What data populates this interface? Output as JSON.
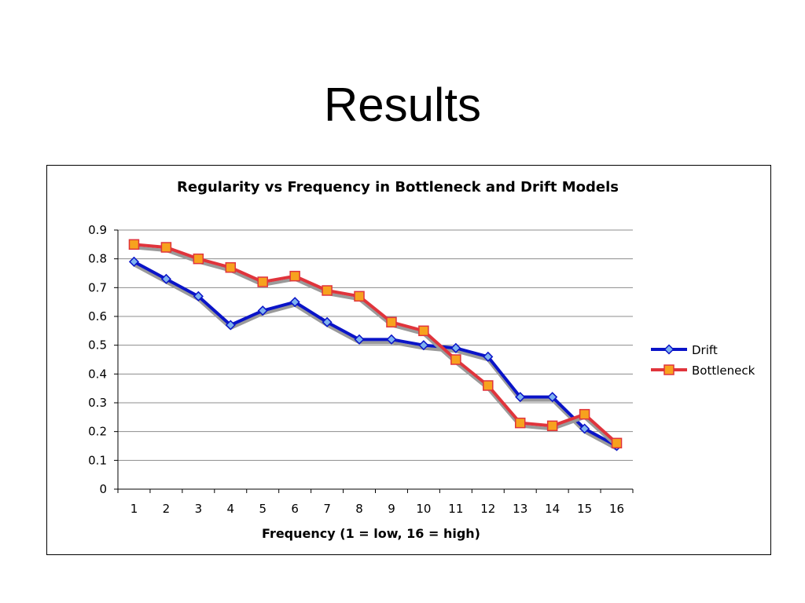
{
  "slide": {
    "title": "Results"
  },
  "chart_data": {
    "type": "line",
    "title": "Regularity vs Frequency in Bottleneck and Drift Models",
    "xlabel": "Frequency (1 = low, 16 = high)",
    "ylabel": "",
    "categories": [
      "1",
      "2",
      "3",
      "4",
      "5",
      "6",
      "7",
      "8",
      "9",
      "10",
      "11",
      "12",
      "13",
      "14",
      "15",
      "16"
    ],
    "yticks": [
      "0",
      "0.1",
      "0.2",
      "0.3",
      "0.4",
      "0.5",
      "0.6",
      "0.7",
      "0.8",
      "0.9"
    ],
    "ylim": [
      0,
      0.9
    ],
    "grid": true,
    "legend_position": "right",
    "series": [
      {
        "name": "Drift",
        "color": "#0a14c8",
        "marker": "diamond",
        "values": [
          0.79,
          0.73,
          0.67,
          0.57,
          0.62,
          0.65,
          0.58,
          0.52,
          0.52,
          0.5,
          0.49,
          0.46,
          0.32,
          0.32,
          0.21,
          0.15
        ]
      },
      {
        "name": "Bottleneck",
        "color": "#e0343c",
        "marker": "square",
        "values": [
          0.85,
          0.84,
          0.8,
          0.77,
          0.72,
          0.74,
          0.69,
          0.67,
          0.58,
          0.55,
          0.45,
          0.36,
          0.23,
          0.22,
          0.26,
          0.16
        ]
      }
    ]
  }
}
